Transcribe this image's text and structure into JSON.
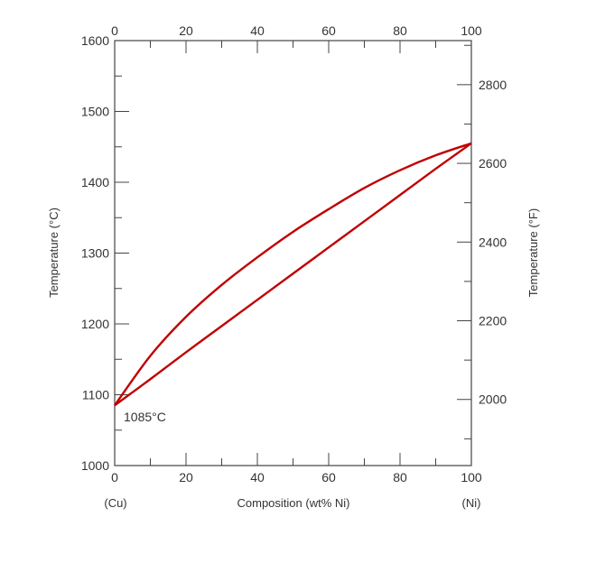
{
  "chart_data": {
    "type": "line",
    "title": "",
    "xlabel": "Composition (wt% Ni)",
    "ylabel_left": "Temperature (°C)",
    "ylabel_right": "Temperature (°F)",
    "xlim": [
      0,
      100
    ],
    "ylim": [
      1000,
      1600
    ],
    "y_right_lim_F": [
      1832,
      2912
    ],
    "x_ticks_major": [
      0,
      20,
      40,
      60,
      80,
      100
    ],
    "x_ticks_minor": [
      10,
      30,
      50,
      70,
      90
    ],
    "y_ticks_left": [
      1000,
      1100,
      1200,
      1300,
      1400,
      1500,
      1600
    ],
    "y_ticks_right": [
      2000,
      2200,
      2400,
      2600,
      2800
    ],
    "endpoint_left": "(Cu)",
    "endpoint_right": "(Ni)",
    "annotation": "1085°C",
    "grid": false,
    "series": [
      {
        "color": "#c00000",
        "x": [
          0,
          10,
          20,
          30,
          40,
          50,
          60,
          70,
          80,
          90,
          100
        ],
        "y": [
          1085,
          1155,
          1210,
          1255,
          1294,
          1330,
          1362,
          1392,
          1417,
          1438,
          1455
        ]
      },
      {
        "color": "#c00000",
        "x": [
          0,
          10,
          20,
          30,
          40,
          50,
          60,
          70,
          80,
          90,
          100
        ],
        "y": [
          1085,
          1122,
          1160,
          1197,
          1234,
          1271,
          1308,
          1345,
          1382,
          1419,
          1455
        ]
      }
    ]
  }
}
